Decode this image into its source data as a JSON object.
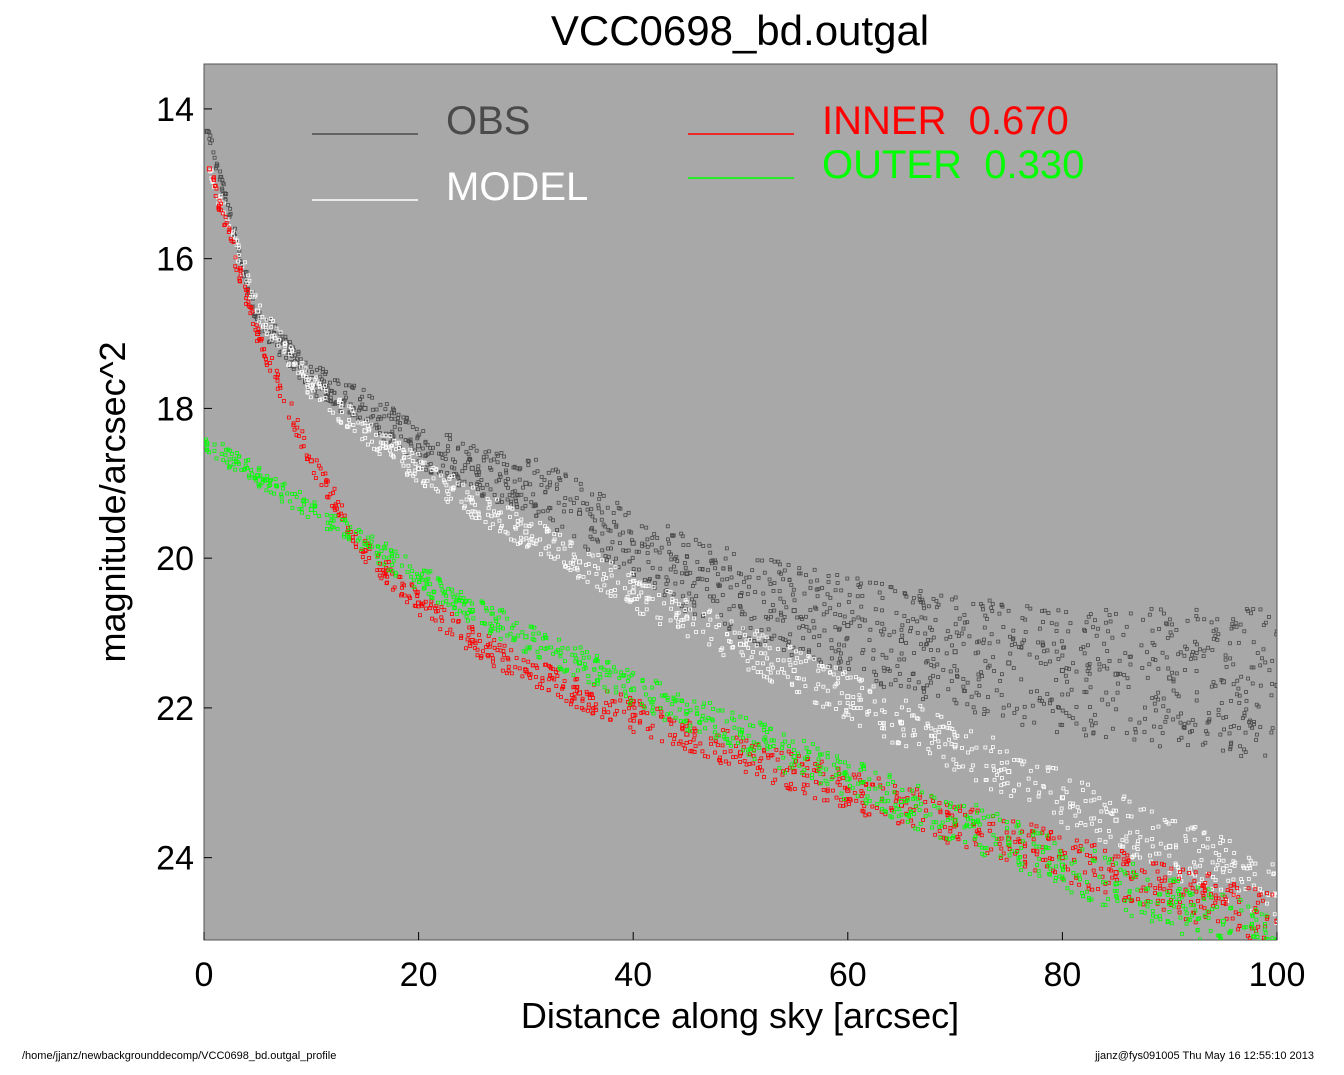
{
  "chart_data": {
    "type": "scatter",
    "title": "VCC0698_bd.outgal",
    "xlabel": "Distance along sky [arcsec]",
    "ylabel": "magnitude/arcsec^2",
    "xlim": [
      0,
      100
    ],
    "ylim": [
      25.1,
      13.4
    ],
    "y_inverted": true,
    "xticks": [
      0,
      20,
      40,
      60,
      80,
      100
    ],
    "yticks": [
      14,
      16,
      18,
      20,
      22,
      24
    ],
    "grid": false,
    "background": "#a8a8a8",
    "legend": [
      {
        "label": "OBS",
        "color": "#4a4a4a"
      },
      {
        "label": "MODEL",
        "color": "#ffffff"
      },
      {
        "label": "INNER",
        "value": "0.670",
        "color": "#ff0000"
      },
      {
        "label": "OUTER",
        "value": "0.330",
        "color": "#00ff00"
      }
    ],
    "series": [
      {
        "name": "OBS",
        "color": "#4a4a4a",
        "x": [
          0.3,
          5,
          10,
          15,
          20,
          25,
          30,
          35,
          40,
          45,
          50,
          55,
          60,
          65,
          70,
          75,
          80,
          85,
          90,
          95,
          100
        ],
        "y": [
          14.3,
          16.8,
          17.6,
          18.0,
          18.5,
          18.8,
          19.0,
          19.4,
          19.8,
          20.2,
          20.5,
          20.7,
          20.9,
          21.1,
          21.25,
          21.4,
          21.5,
          21.55,
          21.6,
          21.65,
          21.7
        ]
      },
      {
        "name": "MODEL",
        "color": "#ffffff",
        "x": [
          0.5,
          5,
          10,
          15,
          20,
          25,
          30,
          35,
          40,
          45,
          50,
          55,
          60,
          65,
          70,
          75,
          80,
          85,
          90,
          95,
          100
        ],
        "y": [
          14.8,
          16.7,
          17.7,
          18.3,
          18.8,
          19.25,
          19.65,
          20.05,
          20.45,
          20.8,
          21.15,
          21.5,
          21.85,
          22.2,
          22.5,
          22.85,
          23.2,
          23.5,
          23.85,
          24.15,
          24.5
        ]
      },
      {
        "name": "INNER",
        "color": "#ff0000",
        "x": [
          0.5,
          5,
          10,
          15,
          20,
          25,
          30,
          35,
          40,
          45,
          50,
          55,
          60,
          65,
          70,
          75,
          80,
          85,
          90,
          95,
          100
        ],
        "y": [
          14.8,
          17.0,
          18.7,
          19.9,
          20.6,
          21.1,
          21.5,
          21.8,
          22.1,
          22.35,
          22.6,
          22.85,
          23.1,
          23.3,
          23.55,
          23.75,
          24.0,
          24.2,
          24.45,
          24.6,
          24.85
        ]
      },
      {
        "name": "OUTER",
        "color": "#00ff00",
        "x": [
          0,
          5,
          10,
          15,
          20,
          25,
          30,
          35,
          40,
          45,
          50,
          55,
          60,
          65,
          70,
          75,
          80,
          85,
          90,
          95,
          100
        ],
        "y": [
          18.45,
          18.9,
          19.35,
          19.8,
          20.25,
          20.7,
          21.05,
          21.4,
          21.75,
          22.05,
          22.35,
          22.65,
          22.95,
          23.25,
          23.5,
          23.8,
          24.1,
          24.35,
          24.6,
          24.85,
          25.1
        ]
      }
    ]
  },
  "footer": {
    "left": "/home/jjanz/newbackgrounddecomp/VCC0698_bd.outgal_profile",
    "right": "jjanz@fys091005  Thu May 16 12:55:10 2013"
  }
}
